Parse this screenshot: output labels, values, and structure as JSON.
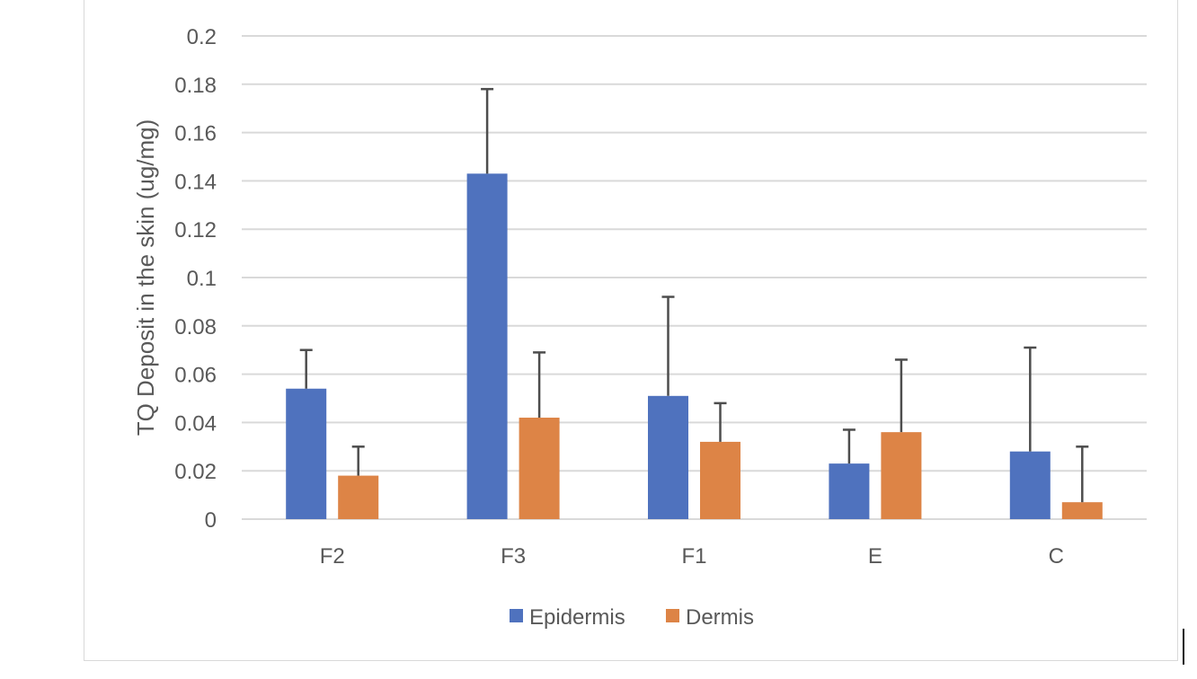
{
  "chart_data": {
    "type": "bar",
    "title": "",
    "xlabel": "",
    "ylabel": "TQ Deposit in the skin (ug/mg)",
    "categories": [
      "F2",
      "F3",
      "F1",
      "E",
      "C"
    ],
    "series": [
      {
        "name": "Epidermis",
        "color": "#4f72be",
        "values": [
          0.054,
          0.143,
          0.051,
          0.023,
          0.028
        ],
        "error_upper": [
          0.016,
          0.035,
          0.041,
          0.014,
          0.043
        ]
      },
      {
        "name": "Dermis",
        "color": "#dd8446",
        "values": [
          0.018,
          0.042,
          0.032,
          0.036,
          0.007
        ],
        "error_upper": [
          0.012,
          0.027,
          0.016,
          0.03,
          0.023
        ]
      }
    ],
    "ylim": [
      0,
      0.2
    ],
    "yticks": [
      "0",
      "0.02",
      "0.04",
      "0.06",
      "0.08",
      "0.1",
      "0.12",
      "0.14",
      "0.16",
      "0.18",
      "0.2"
    ],
    "grid": true,
    "legend_position": "bottom",
    "error_bar_color": "#4d4d4d",
    "grid_color": "#d9d9d9"
  }
}
